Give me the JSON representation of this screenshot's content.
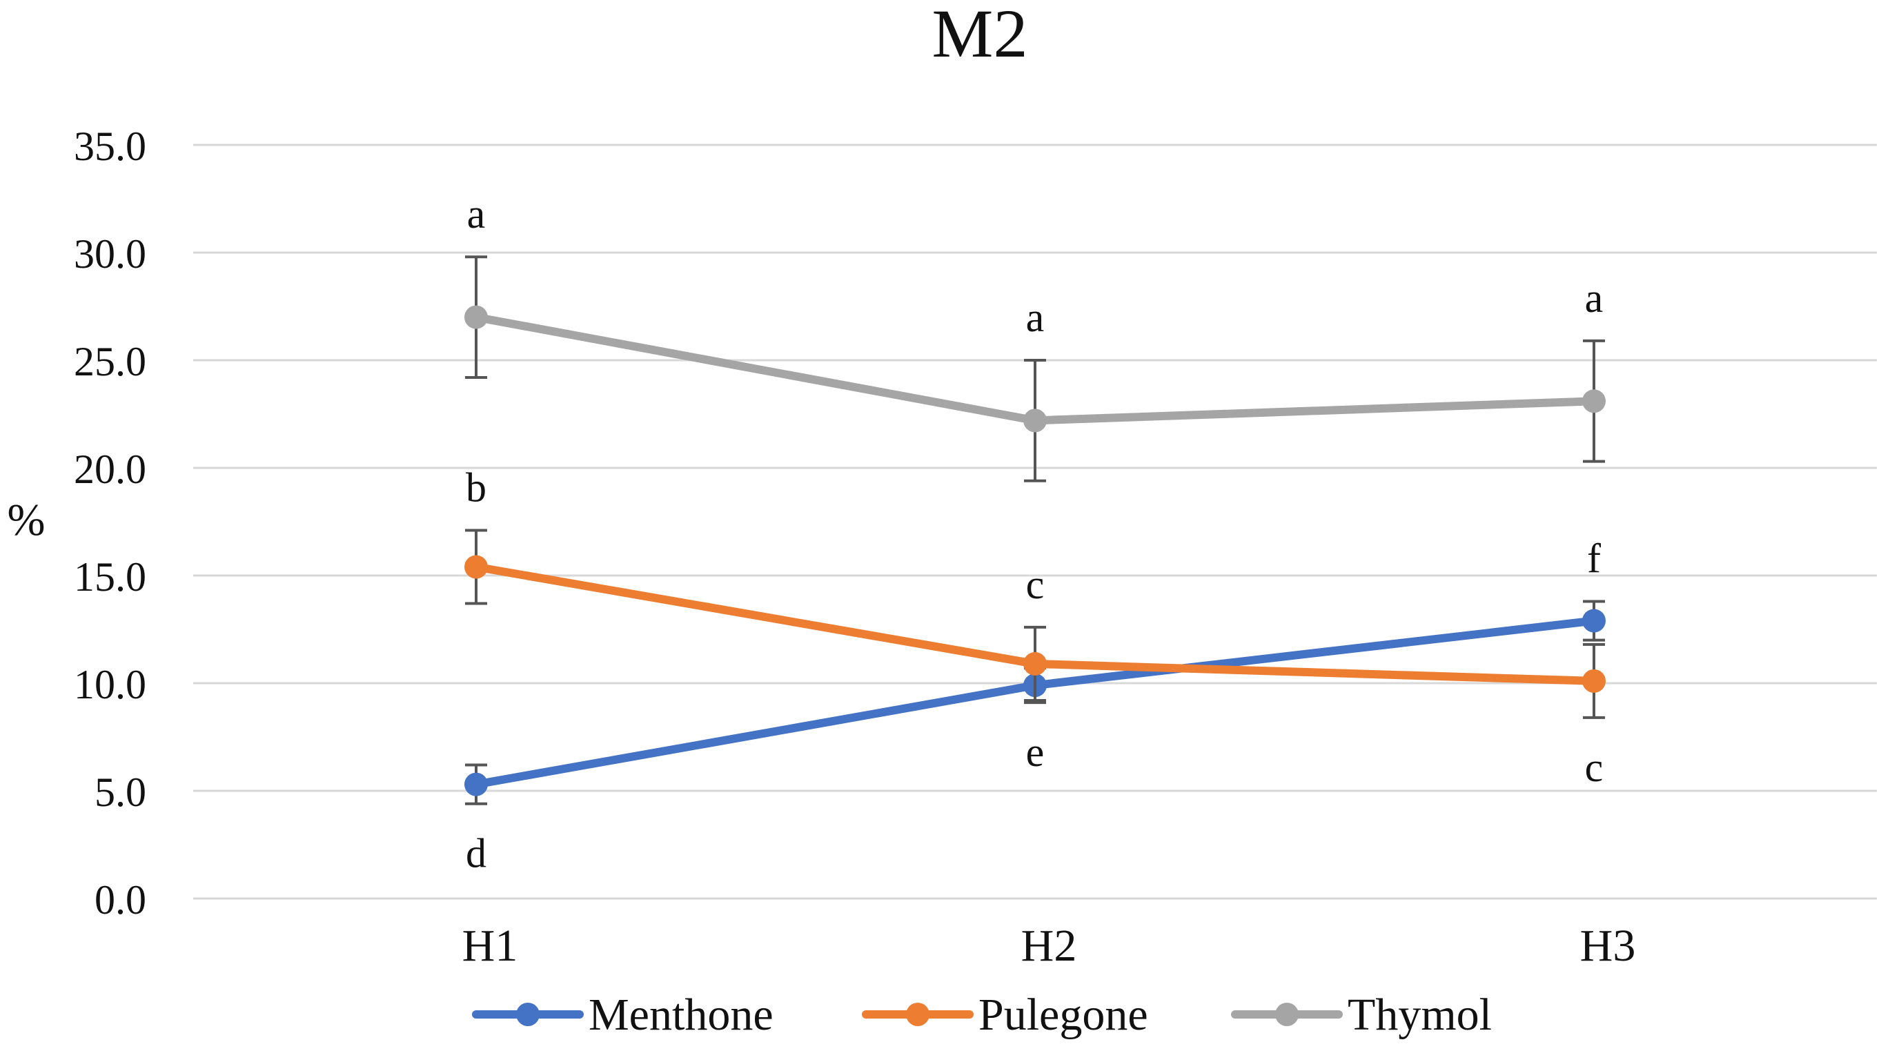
{
  "chart_data": {
    "type": "line",
    "title": "M2",
    "xlabel": "",
    "ylabel": "%",
    "ylim": [
      0,
      35
    ],
    "yticks": [
      0,
      5,
      10,
      15,
      20,
      25,
      30,
      35
    ],
    "ytick_labels": [
      "0.0",
      "5.0",
      "10.0",
      "15.0",
      "20.0",
      "25.0",
      "30.0",
      "35.0"
    ],
    "categories": [
      "H1",
      "H2",
      "H3"
    ],
    "grid": true,
    "legend_position": "bottom",
    "series": [
      {
        "name": "Menthone",
        "color": "#4472C4",
        "values": [
          5.3,
          9.9,
          12.9
        ],
        "errors": [
          0.9,
          0.8,
          0.9
        ],
        "labels": [
          "d",
          "e",
          "f"
        ],
        "label_positions": [
          "below",
          "below",
          "above"
        ]
      },
      {
        "name": "Pulegone",
        "color": "#ED7D31",
        "values": [
          15.4,
          10.9,
          10.1
        ],
        "errors": [
          1.7,
          1.7,
          1.7
        ],
        "labels": [
          "b",
          "c",
          "c"
        ],
        "label_positions": [
          "above",
          "above",
          "below"
        ]
      },
      {
        "name": "Thymol",
        "color": "#A5A5A5",
        "values": [
          27.0,
          22.2,
          23.1
        ],
        "errors": [
          2.8,
          2.8,
          2.8
        ],
        "labels": [
          "a",
          "a",
          "a"
        ],
        "label_positions": [
          "above",
          "above",
          "above"
        ]
      }
    ]
  }
}
